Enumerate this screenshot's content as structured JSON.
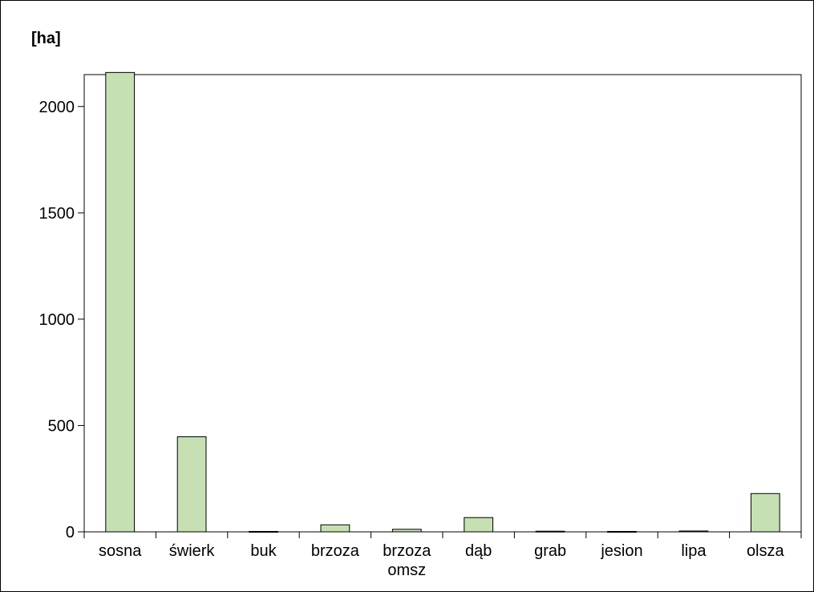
{
  "chart_data": {
    "type": "bar",
    "title": "",
    "unit_label": "[ha]",
    "xlabel": "",
    "ylabel": "",
    "categories": [
      [
        "sosna"
      ],
      [
        "świerk"
      ],
      [
        "buk"
      ],
      [
        "brzoza"
      ],
      [
        "brzoza",
        "omsz"
      ],
      [
        "dąb"
      ],
      [
        "grab"
      ],
      [
        "jesion"
      ],
      [
        "lipa"
      ],
      [
        "olsza"
      ]
    ],
    "values": [
      2160,
      447,
      2,
      33,
      12,
      67,
      3,
      2,
      4,
      180
    ],
    "ylim": [
      0,
      2150
    ],
    "yticks": [
      0,
      500,
      1000,
      1500,
      2000
    ],
    "grid": false,
    "legend": "none",
    "bar_color": "#c6e0b4",
    "bar_edge_color": "#000000"
  }
}
